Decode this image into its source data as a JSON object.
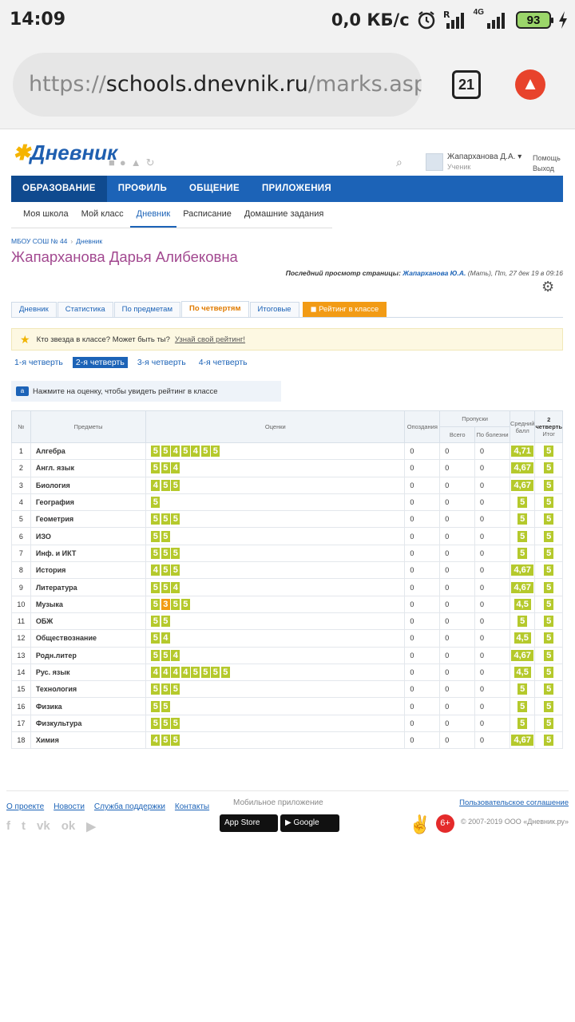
{
  "status": {
    "time": "14:09",
    "speed": "0,0 КБ/с",
    "network": "4G",
    "battery": "93"
  },
  "browser": {
    "url_scheme": "https://",
    "url_host": "schools.dnevnik.ru",
    "url_path": "/marks.aspx",
    "tabs_count": "21"
  },
  "header": {
    "logo": "Дневник",
    "user_name": "Жапарханова Д.А.",
    "user_role": "Ученик",
    "help": "Помощь",
    "logout": "Выход"
  },
  "mainnav": [
    "ОБРАЗОВАНИЕ",
    "ПРОФИЛЬ",
    "ОБЩЕНИЕ",
    "ПРИЛОЖЕНИЯ"
  ],
  "subnav": [
    "Моя школа",
    "Мой класс",
    "Дневник",
    "Расписание",
    "Домашние задания"
  ],
  "breadcrumb": [
    "МБОУ СОШ № 44",
    "Дневник"
  ],
  "page_title": "Жапарханова Дарья Алибековна",
  "last_view": {
    "label": "Последний просмотр страницы:",
    "name": "Жапарханова Ю.А.",
    "rest": "(Мать), Пт, 27 дек 19 в 09:16"
  },
  "subtabs": [
    "Дневник",
    "Статистика",
    "По предметам",
    "По четвертям",
    "Итоговые",
    "Рейтинг в классе"
  ],
  "promo": {
    "text": "Кто звезда в классе? Может быть ты?",
    "link": "Узнай свой рейтинг!"
  },
  "quarters": [
    "1-я четверть",
    "2-я четверть",
    "3-я четверть",
    "4-я четверть"
  ],
  "hint": "Нажмите на оценку, чтобы увидеть рейтинг в классе",
  "table": {
    "headers": {
      "num": "№",
      "subject": "Предметы",
      "grades": "Оценки",
      "late": "Опоздания",
      "absences": "Пропуски",
      "total": "Всего",
      "sick": "По болезни",
      "avg": "Средний балл",
      "quarter_num": "2",
      "quarter_word": "четверть",
      "final": "Итог"
    },
    "rows": [
      {
        "n": "1",
        "subject": "Алгебра",
        "grades": [
          "5",
          "5",
          "4",
          "5",
          "4",
          "5",
          "5"
        ],
        "late": "0",
        "total": "0",
        "sick": "0",
        "avg": "4,71",
        "final": "5"
      },
      {
        "n": "2",
        "subject": "Англ. язык",
        "grades": [
          "5",
          "5",
          "4"
        ],
        "late": "0",
        "total": "0",
        "sick": "0",
        "avg": "4,67",
        "final": "5"
      },
      {
        "n": "3",
        "subject": "Биология",
        "grades": [
          "4",
          "5",
          "5"
        ],
        "late": "0",
        "total": "0",
        "sick": "0",
        "avg": "4,67",
        "final": "5"
      },
      {
        "n": "4",
        "subject": "География",
        "grades": [
          "5"
        ],
        "late": "0",
        "total": "0",
        "sick": "0",
        "avg": "5",
        "final": "5"
      },
      {
        "n": "5",
        "subject": "Геометрия",
        "grades": [
          "5",
          "5",
          "5"
        ],
        "late": "0",
        "total": "0",
        "sick": "0",
        "avg": "5",
        "final": "5"
      },
      {
        "n": "6",
        "subject": "ИЗО",
        "grades": [
          "5",
          "5"
        ],
        "late": "0",
        "total": "0",
        "sick": "0",
        "avg": "5",
        "final": "5"
      },
      {
        "n": "7",
        "subject": "Инф. и ИКТ",
        "grades": [
          "5",
          "5",
          "5"
        ],
        "late": "0",
        "total": "0",
        "sick": "0",
        "avg": "5",
        "final": "5"
      },
      {
        "n": "8",
        "subject": "История",
        "grades": [
          "4",
          "5",
          "5"
        ],
        "late": "0",
        "total": "0",
        "sick": "0",
        "avg": "4,67",
        "final": "5"
      },
      {
        "n": "9",
        "subject": "Литература",
        "grades": [
          "5",
          "5",
          "4"
        ],
        "late": "0",
        "total": "0",
        "sick": "0",
        "avg": "4,67",
        "final": "5"
      },
      {
        "n": "10",
        "subject": "Музыка",
        "grades": [
          "5",
          "3",
          "5",
          "5"
        ],
        "late": "0",
        "total": "0",
        "sick": "0",
        "avg": "4,5",
        "final": "5"
      },
      {
        "n": "11",
        "subject": "ОБЖ",
        "grades": [
          "5",
          "5"
        ],
        "late": "0",
        "total": "0",
        "sick": "0",
        "avg": "5",
        "final": "5"
      },
      {
        "n": "12",
        "subject": "Обществознание",
        "grades": [
          "5",
          "4"
        ],
        "late": "0",
        "total": "0",
        "sick": "0",
        "avg": "4,5",
        "final": "5"
      },
      {
        "n": "13",
        "subject": "Родн.литер",
        "grades": [
          "5",
          "5",
          "4"
        ],
        "late": "0",
        "total": "0",
        "sick": "0",
        "avg": "4,67",
        "final": "5"
      },
      {
        "n": "14",
        "subject": "Рус. язык",
        "grades": [
          "4",
          "4",
          "4",
          "4",
          "5",
          "5",
          "5",
          "5"
        ],
        "late": "0",
        "total": "0",
        "sick": "0",
        "avg": "4,5",
        "final": "5"
      },
      {
        "n": "15",
        "subject": "Технология",
        "grades": [
          "5",
          "5",
          "5"
        ],
        "late": "0",
        "total": "0",
        "sick": "0",
        "avg": "5",
        "final": "5"
      },
      {
        "n": "16",
        "subject": "Физика",
        "grades": [
          "5",
          "5"
        ],
        "late": "0",
        "total": "0",
        "sick": "0",
        "avg": "5",
        "final": "5"
      },
      {
        "n": "17",
        "subject": "Физкультура",
        "grades": [
          "5",
          "5",
          "5"
        ],
        "late": "0",
        "total": "0",
        "sick": "0",
        "avg": "5",
        "final": "5"
      },
      {
        "n": "18",
        "subject": "Химия",
        "grades": [
          "4",
          "5",
          "5"
        ],
        "late": "0",
        "total": "0",
        "sick": "0",
        "avg": "4,67",
        "final": "5"
      }
    ]
  },
  "footer": {
    "links": [
      "О проекте",
      "Новости",
      "Служба поддержки",
      "Контакты"
    ],
    "mobile_label": "Мобильное приложение",
    "appstore": "App Store",
    "googleplay": "Google Play",
    "agreement": "Пользовательское соглашение",
    "age": "6+",
    "copyright": "© 2007-2019 ООО «Дневник.ру»"
  },
  "colors": {
    "accent": "#1c63b7",
    "grade": "#b5c92c",
    "grade_low": "#f29b15",
    "title": "#a24990"
  }
}
